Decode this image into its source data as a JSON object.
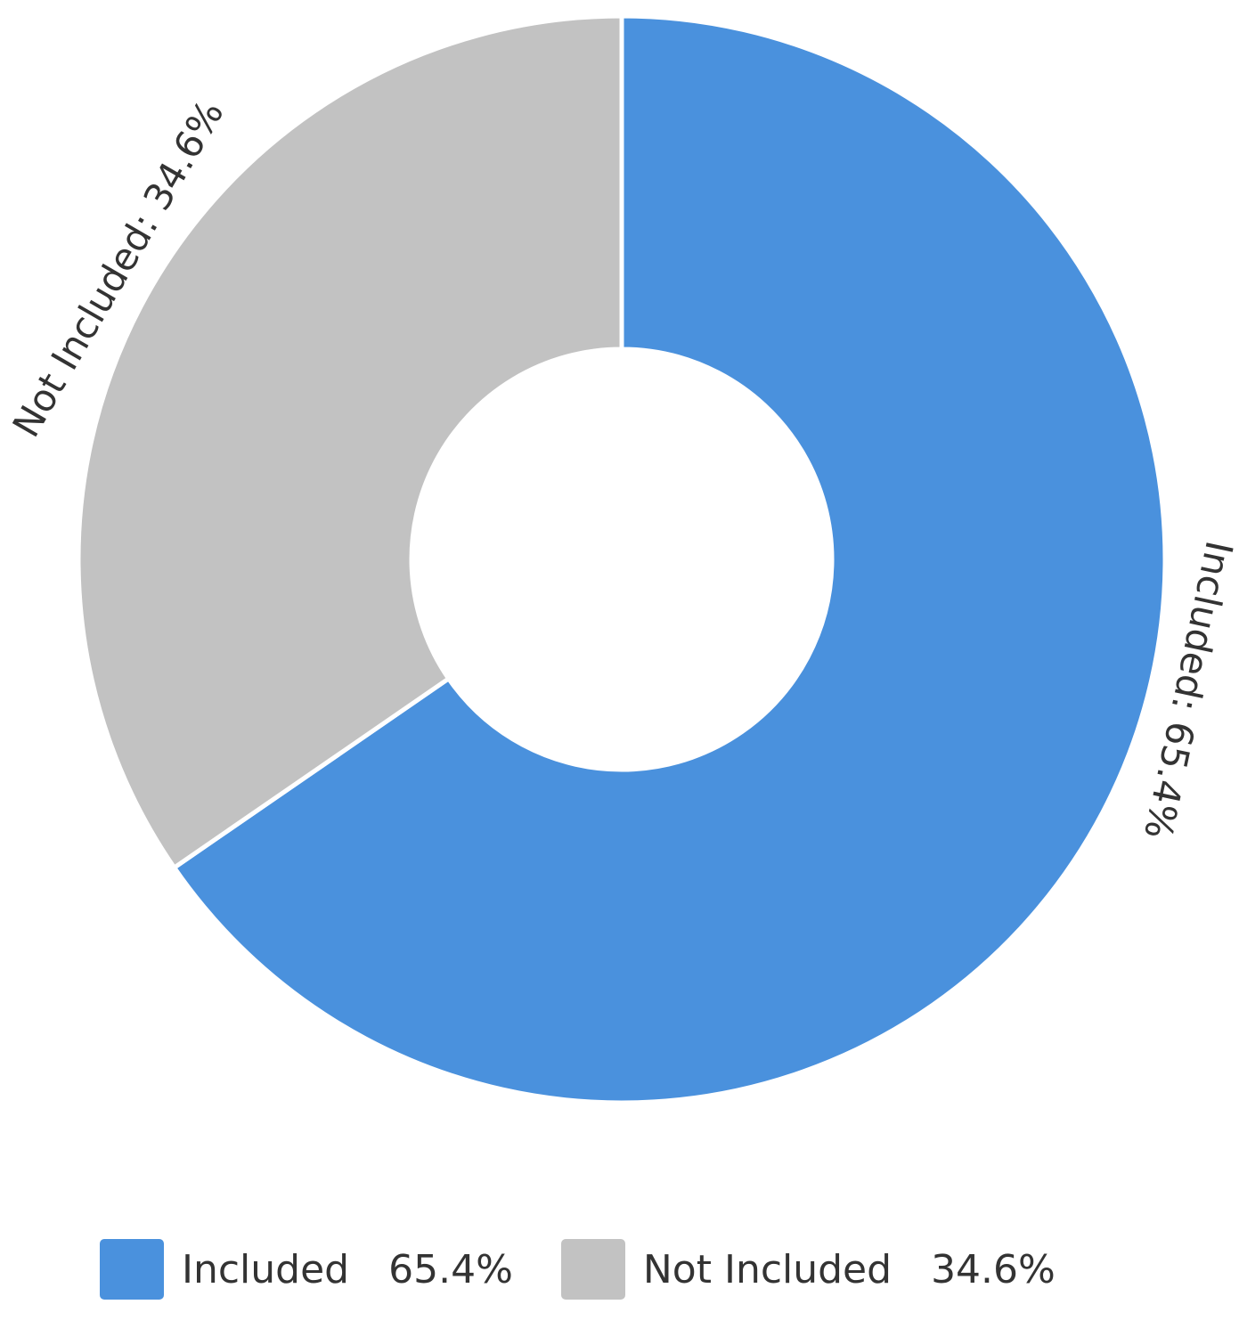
{
  "chart_data": {
    "type": "pie",
    "donut": true,
    "title": "",
    "slices": [
      {
        "label": "Included",
        "value": 65.4,
        "display": "65.4%",
        "color": "#4a91dd",
        "slice_label": "Included: 65.4%"
      },
      {
        "label": "Not Included",
        "value": 34.6,
        "display": "34.6%",
        "color": "#c2c2c2",
        "slice_label": "Not Included: 34.6%"
      }
    ],
    "legend_position": "bottom-left"
  }
}
